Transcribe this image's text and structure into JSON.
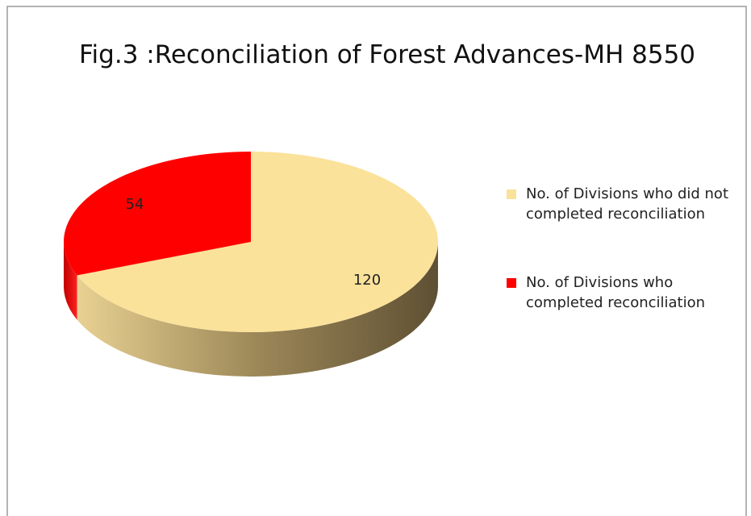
{
  "chart_data": {
    "type": "pie",
    "title": "Fig.3 :Reconciliation of Forest Advances-MH 8550",
    "categories": [
      "No. of Divisions who did not completed reconciliation",
      "No. of Divisions  who completed reconciliation"
    ],
    "values": [
      120,
      54
    ],
    "colors": [
      "#fbe29a",
      "#ff0000"
    ],
    "legend": "right"
  }
}
